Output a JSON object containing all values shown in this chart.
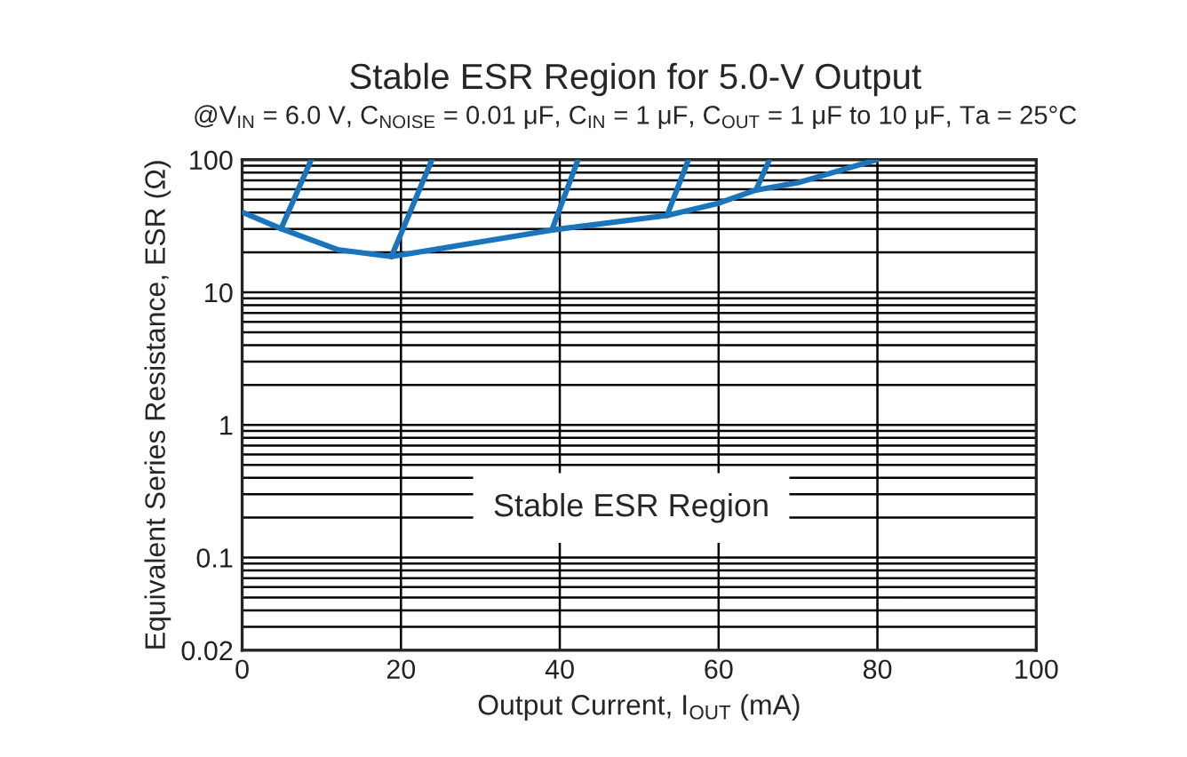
{
  "chart_data": {
    "type": "line",
    "title": "Stable ESR Region for 5.0-V Output",
    "subtitle": "@V$_{IN}$ = 6.0 V, C$_{NOISE}$ = 0.01 μF, C$_{IN}$ = 1 μF, C$_{OUT}$ = 1 μF to 10 μF, Ta = 25°C",
    "xlabel": "Output Current, I$_{OUT}$ (mA)",
    "ylabel": "Equivalent Series Resistance, ESR (Ω)",
    "series": [
      {
        "color": "#1a75bc",
        "x": [
          0.2,
          4.9,
          12,
          18.8,
          30,
          39,
          53.5,
          60,
          64.7,
          70.2,
          79.9
        ],
        "values": [
          39.8,
          30.2,
          21,
          18.6,
          24,
          29.5,
          38,
          47,
          59,
          67.6,
          100
        ]
      },
      {
        "color": "#1a75bc",
        "x": [
          4.9,
          8.7
        ],
        "values": [
          30.2,
          100
        ]
      },
      {
        "color": "#1a75bc",
        "x": [
          18.8,
          23.9
        ],
        "values": [
          18.6,
          100
        ]
      },
      {
        "color": "#1a75bc",
        "x": [
          39,
          42.3
        ],
        "values": [
          29.5,
          100
        ]
      },
      {
        "color": "#1a75bc",
        "x": [
          53.5,
          56.2
        ],
        "values": [
          38,
          100
        ]
      },
      {
        "color": "#1a75bc",
        "x": [
          64.7,
          66.4
        ],
        "values": [
          59,
          100
        ]
      }
    ],
    "xlim": [
      0,
      100
    ],
    "xticks": [
      0,
      20,
      40,
      60,
      80,
      100
    ],
    "ylim": [
      0.02,
      100
    ],
    "yticks": [
      0.02,
      0.1,
      1,
      10,
      100
    ],
    "log": "y",
    "grid": true,
    "line_style": "solid",
    "marker": "none",
    "annotations": [
      "Stable ESR Region"
    ]
  }
}
